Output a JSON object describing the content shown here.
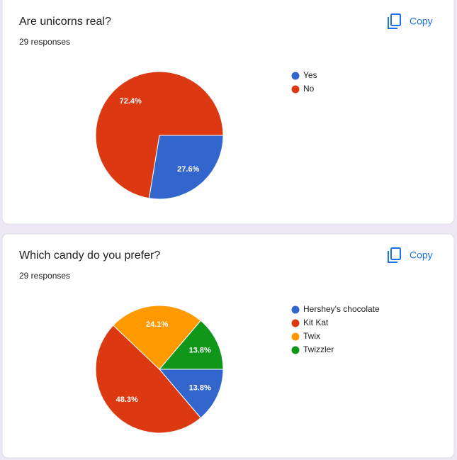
{
  "chart_data": [
    {
      "type": "pie",
      "title": "Are unicorns real?",
      "subtitle": "29 responses",
      "copy_label": "Copy",
      "categories": [
        "Yes",
        "No"
      ],
      "values": [
        27.6,
        72.4
      ],
      "value_labels": [
        "27.6%",
        "72.4%"
      ],
      "colors": [
        "#3366cc",
        "#dc3912"
      ]
    },
    {
      "type": "pie",
      "title": "Which candy do you prefer?",
      "subtitle": "29 responses",
      "copy_label": "Copy",
      "categories": [
        "Hershey's chocolate",
        "Kit Kat",
        "Twix",
        "Twizzler"
      ],
      "values": [
        13.8,
        48.3,
        24.1,
        13.8
      ],
      "value_labels": [
        "13.8%",
        "48.3%",
        "24.1%",
        "13.8%"
      ],
      "colors": [
        "#3366cc",
        "#dc3912",
        "#ff9900",
        "#109618"
      ]
    }
  ]
}
